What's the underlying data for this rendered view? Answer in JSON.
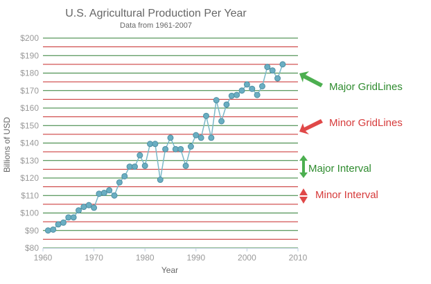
{
  "chart_data": {
    "type": "line",
    "title": "U.S. Agricultural Production Per Year",
    "subtitle": "Data from 1961-2007",
    "xlabel": "Year",
    "ylabel": "Billions of USD",
    "xlim": [
      1960,
      2010
    ],
    "ylim": [
      80,
      200
    ],
    "x_ticks": [
      "1960",
      "1970",
      "1980",
      "1990",
      "2000",
      "2010"
    ],
    "x_tick_values": [
      1960,
      1970,
      1980,
      1990,
      2000,
      2010
    ],
    "y_ticks": [
      "$80",
      "$90",
      "$100",
      "$110",
      "$120",
      "$130",
      "$140",
      "$150",
      "$160",
      "$170",
      "$180",
      "$190",
      "$200"
    ],
    "y_tick_values": [
      80,
      90,
      100,
      110,
      120,
      130,
      140,
      150,
      160,
      170,
      180,
      190,
      200
    ],
    "major_interval": 10,
    "minor_interval": 5,
    "major_grid_color": "#2e7d32",
    "minor_grid_color": "#c62828",
    "line_color": "#7ab8c8",
    "marker_color": "#6aaec2",
    "marker_stroke": "#4e8fa3",
    "series": [
      {
        "x": [
          1961,
          1962,
          1963,
          1964,
          1965,
          1966,
          1967,
          1968,
          1969,
          1970,
          1971,
          1972,
          1973,
          1974,
          1975,
          1976,
          1977,
          1978,
          1979,
          1980,
          1981,
          1982,
          1983,
          1984,
          1985,
          1986,
          1987,
          1988,
          1989,
          1990,
          1991,
          1992,
          1993,
          1994,
          1995,
          1996,
          1997,
          1998,
          1999,
          2000,
          2001,
          2002,
          2003,
          2004,
          2005,
          2006,
          2007
        ],
        "values": [
          90,
          90.5,
          93.5,
          94.5,
          97.5,
          97.5,
          101.5,
          103.5,
          104.5,
          103,
          111,
          111.5,
          113,
          110,
          117.5,
          121,
          126.5,
          126.5,
          133,
          127,
          139.5,
          139.5,
          119,
          136.5,
          143,
          136.5,
          136.5,
          127,
          138,
          144.5,
          143,
          155.5,
          143,
          164.5,
          152.5,
          162,
          167,
          167.5,
          170,
          173.5,
          171,
          167.5,
          172.5,
          183.5,
          181.5,
          177,
          185
        ]
      }
    ]
  },
  "annotations": {
    "major_gridlines": "Major GridLines",
    "minor_gridlines": "Minor GridLines",
    "major_interval": "Major Interval",
    "minor_interval": "Minor Interval",
    "green": "#4caf50",
    "red": "#e04848"
  }
}
